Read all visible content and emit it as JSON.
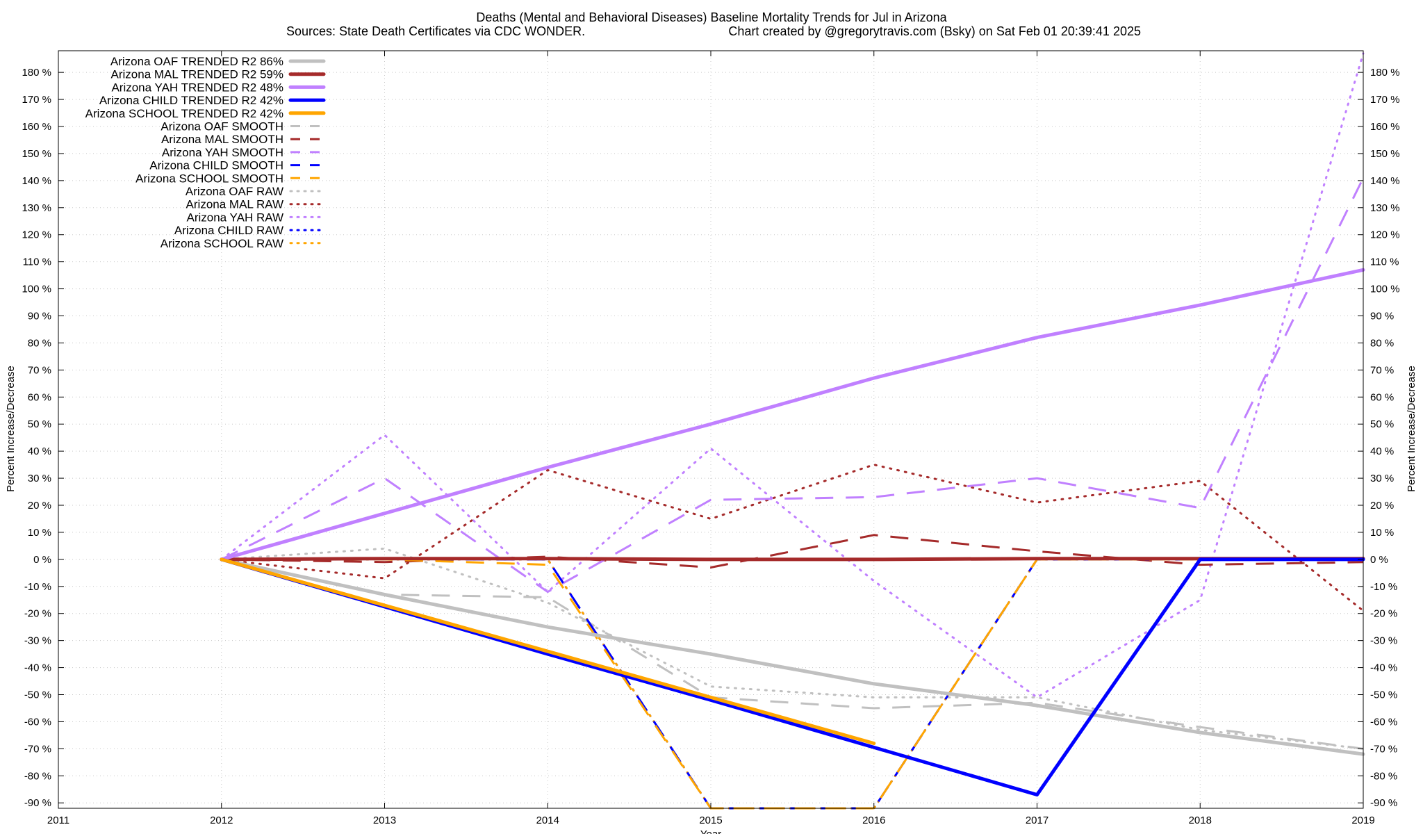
{
  "chart_data": {
    "type": "line",
    "title": "Deaths (Mental and Behavioral Diseases)  Baseline Mortality Trends for Jul in Arizona",
    "subtitle_left": "Sources: State Death Certificates via CDC WONDER.",
    "subtitle_right": "Chart created by @gregorytravis.com (Bsky) on Sat Feb 01 20:39:41 2025",
    "xlabel": "Year",
    "ylabel_left": "Percent Increase/Decrease",
    "ylabel_right": "Percent Increase/Decrease",
    "xlim": [
      2011,
      2019
    ],
    "ylim": [
      -92,
      188
    ],
    "x_ticks": [
      "2011",
      "2012",
      "2013",
      "2014",
      "2015",
      "2016",
      "2017",
      "2018",
      "2019"
    ],
    "y_ticks": [
      -90,
      -80,
      -70,
      -60,
      -50,
      -40,
      -30,
      -20,
      -10,
      0,
      10,
      20,
      30,
      40,
      50,
      60,
      70,
      80,
      90,
      100,
      110,
      120,
      130,
      140,
      150,
      160,
      170,
      180
    ],
    "y_tick_suffix": " %",
    "grid": true,
    "legend_position": "top-left",
    "x": [
      2012,
      2013,
      2014,
      2015,
      2016,
      2017,
      2018,
      2019
    ],
    "series": [
      {
        "name": "Arizona OAF TRENDED R2  86%",
        "color": "#c0c0c0",
        "style": "solid",
        "values": [
          0,
          -13,
          -25,
          -35,
          -46,
          -54,
          -64,
          -72
        ]
      },
      {
        "name": "Arizona MAL TRENDED R2  59%",
        "color": "#a52a2a",
        "style": "solid",
        "values": [
          0,
          0.3,
          0.3,
          0,
          0,
          0.3,
          0.3,
          0.3
        ]
      },
      {
        "name": "Arizona YAH TRENDED R2  48%",
        "color": "#c080ff",
        "style": "solid",
        "values": [
          0,
          17,
          34,
          50,
          67,
          82,
          94,
          107
        ]
      },
      {
        "name": "Arizona CHILD TRENDED R2  42%",
        "color": "#0000ff",
        "style": "solid",
        "values": [
          0,
          -17.5,
          -35,
          -52,
          -69.5,
          -87,
          0,
          0
        ]
      },
      {
        "name": "Arizona SCHOOL TRENDED R2  42%",
        "color": "#ffa500",
        "style": "solid",
        "values": [
          0,
          -17,
          -34,
          -51,
          -68,
          null,
          null,
          null
        ]
      },
      {
        "name": "Arizona OAF SMOOTH",
        "color": "#c0c0c0",
        "style": "dashed",
        "values": [
          0,
          -13,
          -14,
          -51,
          -55,
          -53,
          -62,
          -70
        ]
      },
      {
        "name": "Arizona MAL SMOOTH",
        "color": "#a52a2a",
        "style": "dashed",
        "values": [
          0,
          -1,
          1,
          -3,
          9,
          3,
          -2,
          -1
        ]
      },
      {
        "name": "Arizona YAH SMOOTH",
        "color": "#c080ff",
        "style": "dashed",
        "values": [
          0,
          30,
          -12,
          22,
          23,
          30,
          19,
          141
        ]
      },
      {
        "name": "Arizona CHILD SMOOTH",
        "color": "#0000ff",
        "style": "dashed",
        "values": [
          0,
          0,
          0,
          -92,
          -92,
          0,
          0,
          0
        ]
      },
      {
        "name": "Arizona SCHOOL SMOOTH",
        "color": "#ffa500",
        "style": "dashed",
        "values": [
          0,
          0,
          -2,
          -92,
          -92,
          0,
          0,
          0
        ]
      },
      {
        "name": "Arizona OAF RAW",
        "color": "#c0c0c0",
        "style": "dotted",
        "values": [
          0,
          4,
          -16,
          -47,
          -51,
          -51,
          -63,
          -70
        ]
      },
      {
        "name": "Arizona MAL RAW",
        "color": "#a52a2a",
        "style": "dotted",
        "values": [
          0,
          -7,
          33,
          15,
          35,
          21,
          29,
          -19
        ]
      },
      {
        "name": "Arizona YAH RAW",
        "color": "#c080ff",
        "style": "dotted",
        "values": [
          0,
          46,
          -12,
          41,
          -8,
          -51,
          -15,
          187
        ]
      },
      {
        "name": "Arizona CHILD RAW",
        "color": "#0000ff",
        "style": "dotted",
        "values": [
          0,
          0,
          0,
          -92,
          -92,
          0,
          0,
          0
        ]
      },
      {
        "name": "Arizona SCHOOL RAW",
        "color": "#ffa500",
        "style": "dotted",
        "values": [
          0,
          0,
          0,
          -92,
          -92,
          0,
          0,
          0
        ]
      }
    ]
  }
}
